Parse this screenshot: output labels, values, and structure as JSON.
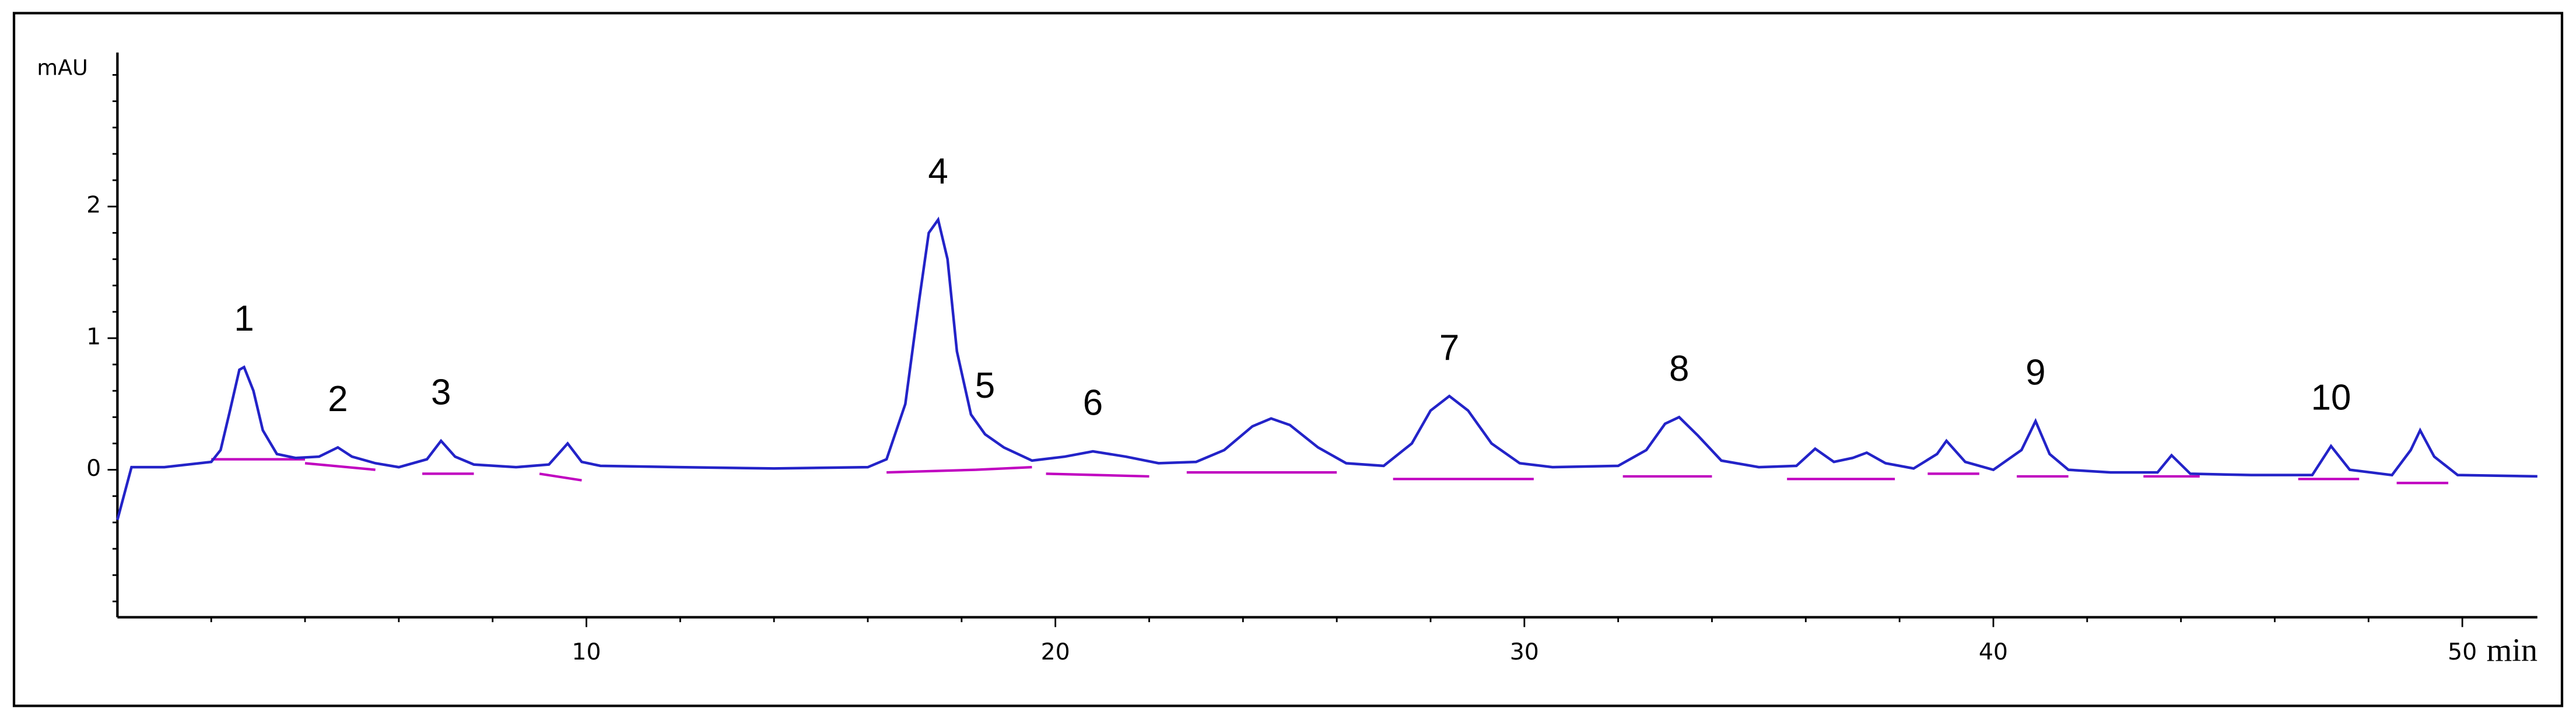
{
  "chart_data": {
    "type": "line",
    "x_label": "min",
    "y_label": "mAU",
    "xlim": [
      0,
      51.6
    ],
    "ylim": [
      -1.12,
      3.17
    ],
    "xticks": [
      10,
      20,
      30,
      40,
      50
    ],
    "yticks": [
      0,
      1,
      2
    ],
    "xminorticks": [
      2,
      4,
      6,
      8,
      12,
      14,
      16,
      18,
      22,
      24,
      26,
      28,
      32,
      34,
      36,
      38,
      42,
      44,
      46,
      48
    ],
    "yminorticks": [
      -1,
      -0.8,
      -0.6,
      -0.4,
      -0.2,
      0.2,
      0.4,
      0.6,
      0.8,
      1.2,
      1.4,
      1.6,
      1.8,
      2.2,
      2.4,
      2.6,
      2.8,
      3
    ],
    "series": [
      {
        "color": "#2323c8",
        "x": [
          0,
          0.3,
          1,
          2,
          2.2,
          2.4,
          2.6,
          2.7,
          2.9,
          3.1,
          3.4,
          3.8,
          4.3,
          4.7,
          5.0,
          5.5,
          6.0,
          6.6,
          6.9,
          7.2,
          7.6,
          8.5,
          9.2,
          9.6,
          9.9,
          10.3,
          12,
          14,
          16,
          16.4,
          16.8,
          17.1,
          17.3,
          17.5,
          17.7,
          17.9,
          18.2,
          18.5,
          18.9,
          19.5,
          20.2,
          20.8,
          21.5,
          22.2,
          23.0,
          23.6,
          24.2,
          24.6,
          25.0,
          25.6,
          26.2,
          27.0,
          27.6,
          28.0,
          28.4,
          28.8,
          29.3,
          29.9,
          30.6,
          32.0,
          32.6,
          33.0,
          33.3,
          33.7,
          34.2,
          35.0,
          35.8,
          36.2,
          36.6,
          37.0,
          37.3,
          37.7,
          38.3,
          38.8,
          39.0,
          39.4,
          40.0,
          40.6,
          40.9,
          41.2,
          41.6,
          42.5,
          43.5,
          43.8,
          44.2,
          45.5,
          46.8,
          47.2,
          47.6,
          48.5,
          48.9,
          49.1,
          49.4,
          49.9,
          51.6
        ],
        "values": [
          -0.38,
          0.02,
          0.02,
          0.06,
          0.15,
          0.45,
          0.76,
          0.78,
          0.6,
          0.3,
          0.12,
          0.09,
          0.1,
          0.17,
          0.1,
          0.05,
          0.02,
          0.08,
          0.22,
          0.1,
          0.04,
          0.02,
          0.04,
          0.2,
          0.06,
          0.03,
          0.02,
          0.01,
          0.02,
          0.08,
          0.5,
          1.3,
          1.8,
          1.9,
          1.6,
          0.9,
          0.42,
          0.27,
          0.17,
          0.07,
          0.1,
          0.14,
          0.1,
          0.05,
          0.06,
          0.15,
          0.33,
          0.39,
          0.34,
          0.17,
          0.05,
          0.03,
          0.2,
          0.45,
          0.56,
          0.45,
          0.2,
          0.05,
          0.02,
          0.03,
          0.15,
          0.35,
          0.4,
          0.26,
          0.07,
          0.02,
          0.03,
          0.16,
          0.06,
          0.09,
          0.13,
          0.05,
          0.01,
          0.12,
          0.22,
          0.06,
          0.0,
          0.15,
          0.37,
          0.12,
          0.0,
          -0.02,
          -0.02,
          0.11,
          -0.03,
          -0.04,
          -0.04,
          0.18,
          0.0,
          -0.04,
          0.15,
          0.3,
          0.1,
          -0.04,
          -0.05
        ]
      }
    ],
    "baseline_color": "#c000c0",
    "baselines": [
      {
        "x": [
          2.0,
          4.0
        ],
        "y": [
          0.08,
          0.08
        ]
      },
      {
        "x": [
          4.0,
          5.5
        ],
        "y": [
          0.05,
          0.0
        ]
      },
      {
        "x": [
          6.5,
          7.6
        ],
        "y": [
          -0.03,
          -0.03
        ]
      },
      {
        "x": [
          9.0,
          9.9
        ],
        "y": [
          -0.03,
          -0.08
        ]
      },
      {
        "x": [
          16.4,
          18.3
        ],
        "y": [
          -0.02,
          0.0
        ]
      },
      {
        "x": [
          18.3,
          19.5
        ],
        "y": [
          0.0,
          0.02
        ]
      },
      {
        "x": [
          19.8,
          22.0
        ],
        "y": [
          -0.03,
          -0.05
        ]
      },
      {
        "x": [
          22.8,
          26.0
        ],
        "y": [
          -0.02,
          -0.02
        ]
      },
      {
        "x": [
          27.2,
          30.2
        ],
        "y": [
          -0.07,
          -0.07
        ]
      },
      {
        "x": [
          32.1,
          34.0
        ],
        "y": [
          -0.05,
          -0.05
        ]
      },
      {
        "x": [
          35.6,
          37.9
        ],
        "y": [
          -0.07,
          -0.07
        ]
      },
      {
        "x": [
          38.6,
          39.7
        ],
        "y": [
          -0.03,
          -0.03
        ]
      },
      {
        "x": [
          40.5,
          41.6
        ],
        "y": [
          -0.05,
          -0.05
        ]
      },
      {
        "x": [
          43.2,
          44.4
        ],
        "y": [
          -0.05,
          -0.05
        ]
      },
      {
        "x": [
          46.5,
          47.8
        ],
        "y": [
          -0.07,
          -0.07
        ]
      },
      {
        "x": [
          48.6,
          49.7
        ],
        "y": [
          -0.1,
          -0.1
        ]
      }
    ],
    "annotations": [
      {
        "text": "1",
        "x": 2.7,
        "y": 0.78
      },
      {
        "text": "2",
        "x": 4.7,
        "y": 0.17
      },
      {
        "text": "3",
        "x": 6.9,
        "y": 0.22
      },
      {
        "text": "4",
        "x": 17.5,
        "y": 1.9
      },
      {
        "text": "5",
        "x": 18.5,
        "y": 0.27
      },
      {
        "text": "6",
        "x": 20.8,
        "y": 0.14
      },
      {
        "text": "7",
        "x": 28.4,
        "y": 0.56
      },
      {
        "text": "8",
        "x": 33.3,
        "y": 0.4
      },
      {
        "text": "9",
        "x": 40.9,
        "y": 0.37
      },
      {
        "text": "10",
        "x": 47.2,
        "y": 0.18
      }
    ]
  }
}
